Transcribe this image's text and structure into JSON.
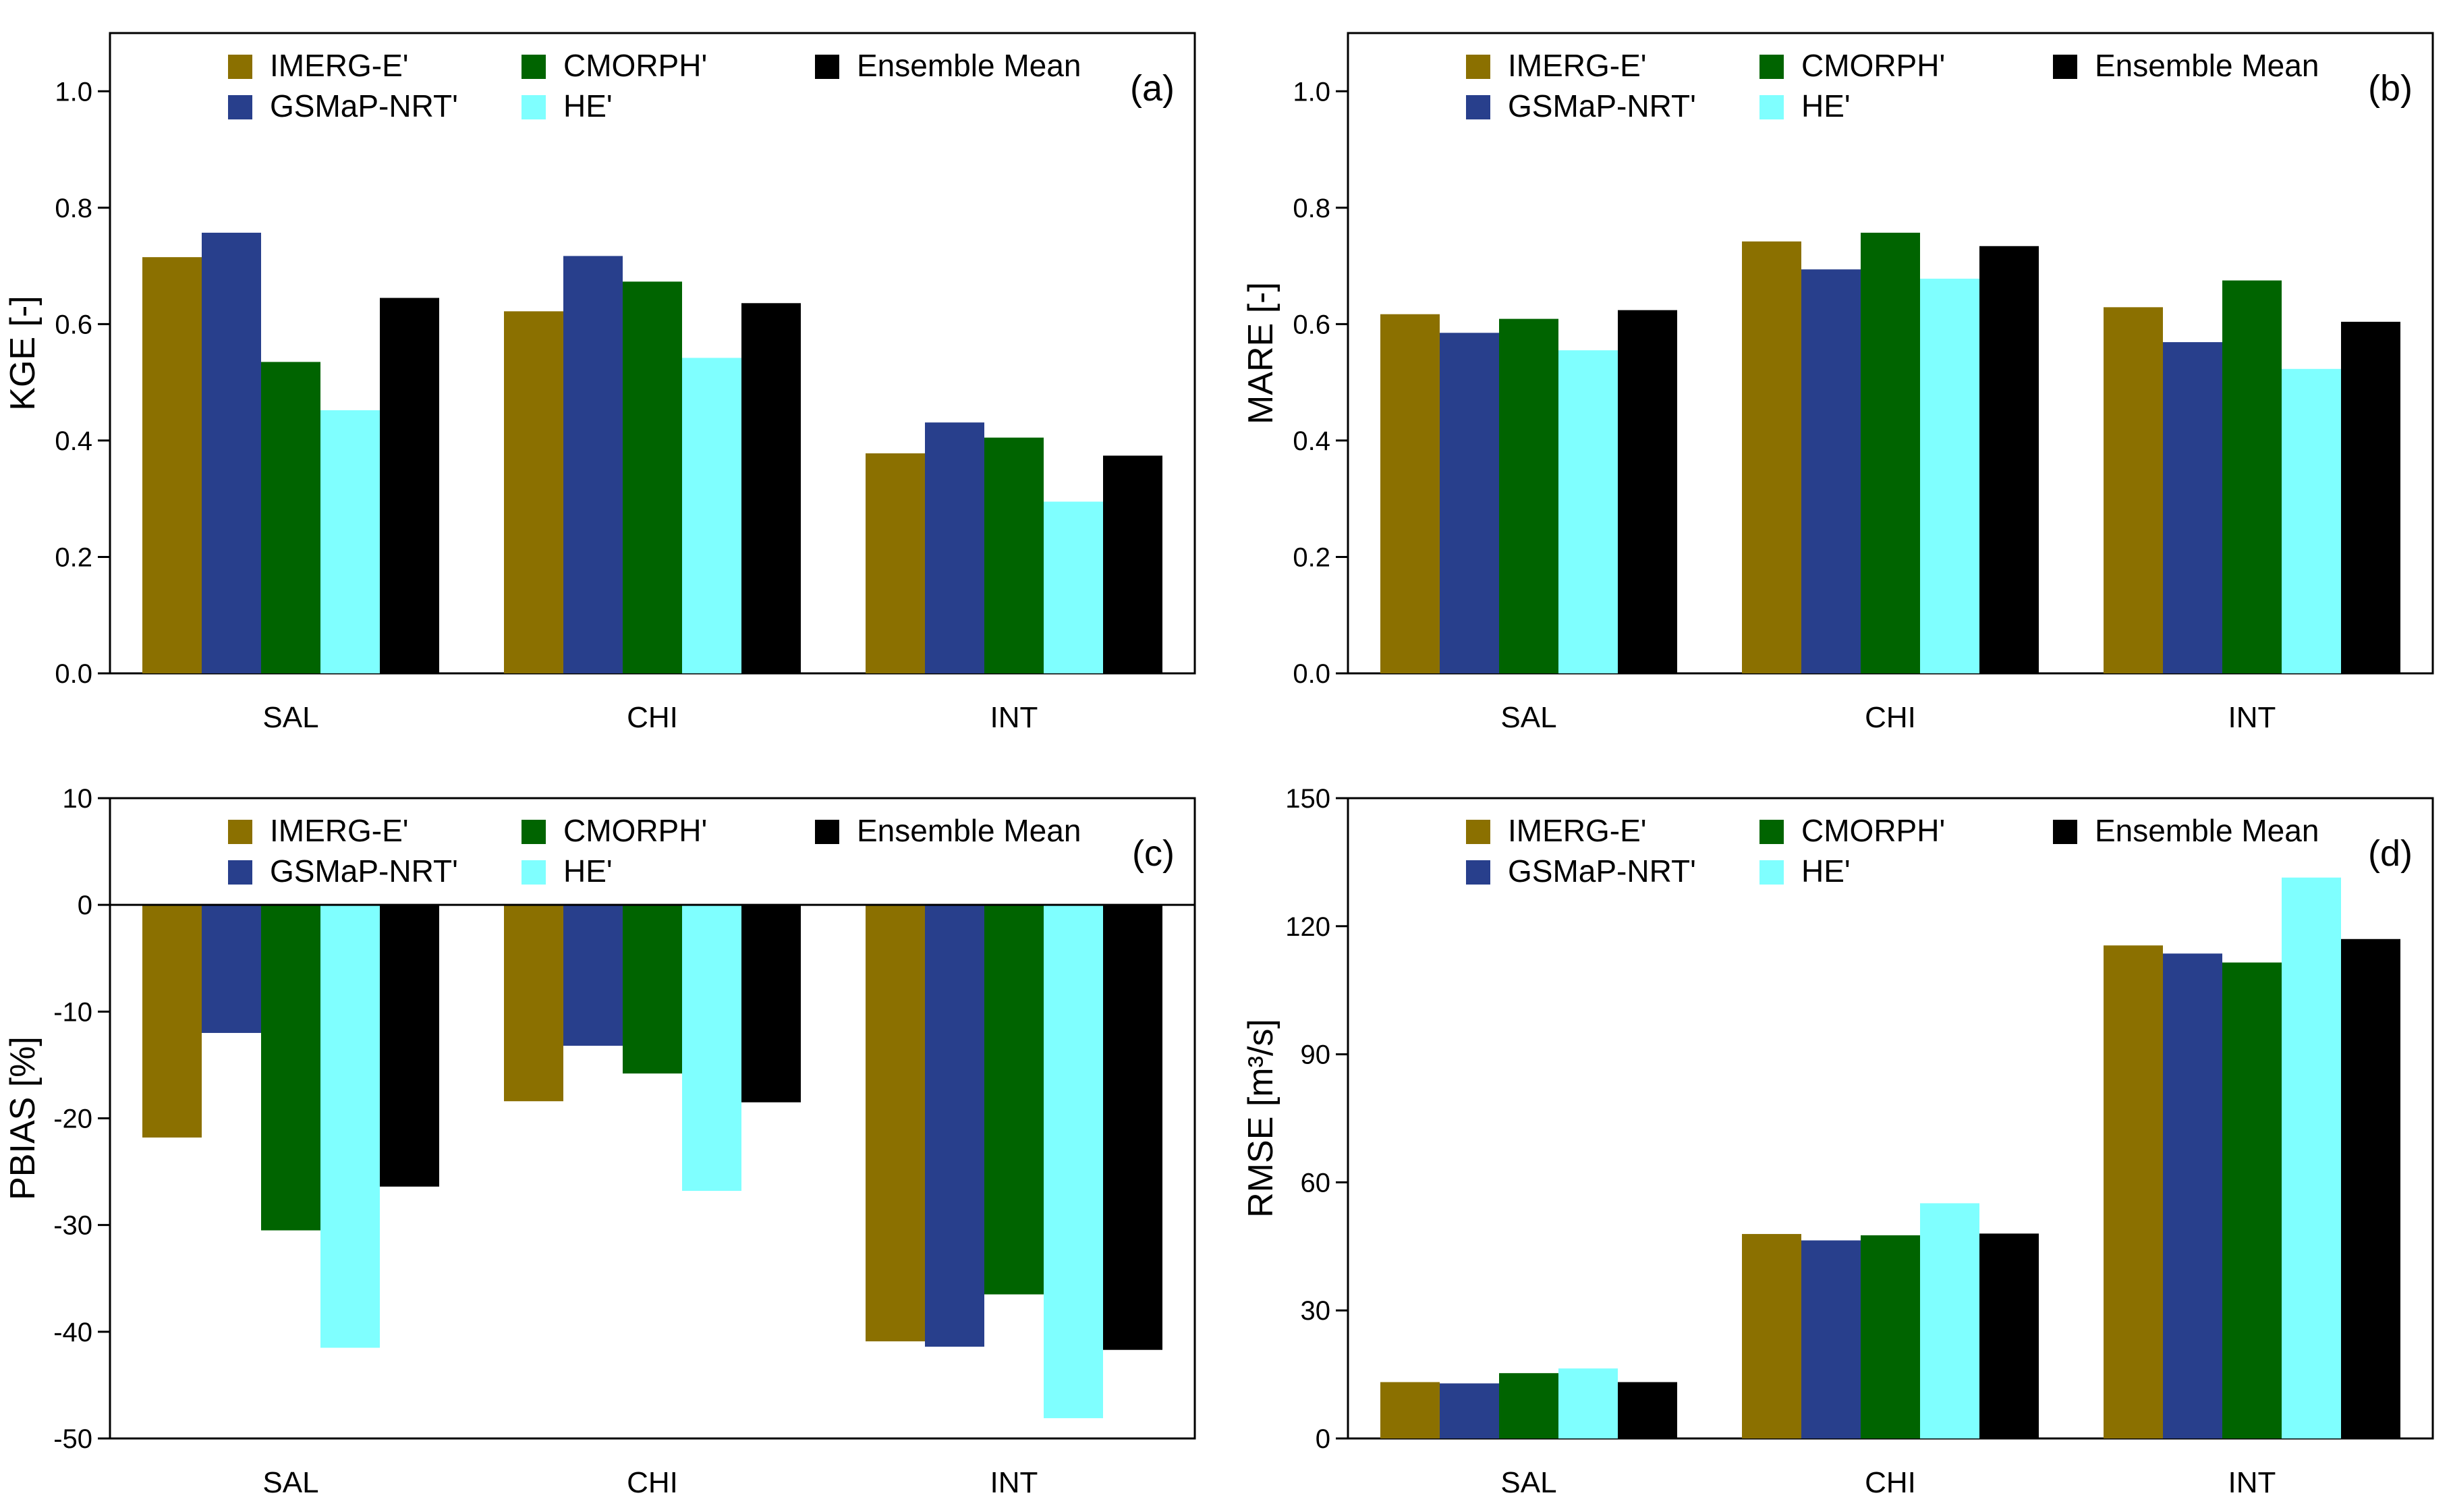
{
  "figure": {
    "series_colors": {
      "IMERG-E'": "#8B7000",
      "GSMaP-NRT'": "#283F8C",
      "CMORPH'": "#006400",
      "HE'": "#7FFFFF",
      "Ensemble Mean": "#000000"
    }
  },
  "chart_data": [
    {
      "id": "a",
      "type": "bar",
      "panel_label": "(a)",
      "title": "",
      "xlabel": "",
      "ylabel": "KGE [-]",
      "categories": [
        "SAL",
        "CHI",
        "INT"
      ],
      "ylim": [
        0,
        1.1
      ],
      "yticks": [
        0.0,
        0.2,
        0.4,
        0.6,
        0.8,
        1.0
      ],
      "ytick_labels": [
        "0.0",
        "0.2",
        "0.4",
        "0.6",
        "0.8",
        "1.0"
      ],
      "zero_line": false,
      "legend_position": "top",
      "series": [
        {
          "name": "IMERG-E'",
          "values": [
            0.715,
            0.622,
            0.378
          ]
        },
        {
          "name": "GSMaP-NRT'",
          "values": [
            0.757,
            0.717,
            0.431
          ]
        },
        {
          "name": "CMORPH'",
          "values": [
            0.535,
            0.673,
            0.405
          ]
        },
        {
          "name": "HE'",
          "values": [
            0.452,
            0.542,
            0.295
          ]
        },
        {
          "name": "Ensemble Mean",
          "values": [
            0.645,
            0.636,
            0.374
          ]
        }
      ]
    },
    {
      "id": "b",
      "type": "bar",
      "panel_label": "(b)",
      "title": "",
      "xlabel": "",
      "ylabel": "MARE [-]",
      "categories": [
        "SAL",
        "CHI",
        "INT"
      ],
      "ylim": [
        0,
        1.1
      ],
      "yticks": [
        0.0,
        0.2,
        0.4,
        0.6,
        0.8,
        1.0
      ],
      "ytick_labels": [
        "0.0",
        "0.2",
        "0.4",
        "0.6",
        "0.8",
        "1.0"
      ],
      "zero_line": false,
      "legend_position": "top",
      "series": [
        {
          "name": "IMERG-E'",
          "values": [
            0.617,
            0.742,
            0.629
          ]
        },
        {
          "name": "GSMaP-NRT'",
          "values": [
            0.585,
            0.694,
            0.569
          ]
        },
        {
          "name": "CMORPH'",
          "values": [
            0.609,
            0.757,
            0.675
          ]
        },
        {
          "name": "HE'",
          "values": [
            0.555,
            0.678,
            0.523
          ]
        },
        {
          "name": "Ensemble Mean",
          "values": [
            0.624,
            0.734,
            0.604
          ]
        }
      ]
    },
    {
      "id": "c",
      "type": "bar",
      "panel_label": "(c)",
      "title": "",
      "xlabel": "",
      "ylabel": "PBIAS [%]",
      "categories": [
        "SAL",
        "CHI",
        "INT"
      ],
      "ylim": [
        -50,
        10
      ],
      "yticks": [
        -50,
        -40,
        -30,
        -20,
        -10,
        0,
        10
      ],
      "ytick_labels": [
        "-50",
        "-40",
        "-30",
        "-20",
        "-10",
        "0",
        "10"
      ],
      "zero_line": true,
      "legend_position": "top",
      "series": [
        {
          "name": "IMERG-E'",
          "values": [
            -21.8,
            -18.4,
            -40.9
          ]
        },
        {
          "name": "GSMaP-NRT'",
          "values": [
            -12.0,
            -13.2,
            -41.4
          ]
        },
        {
          "name": "CMORPH'",
          "values": [
            -30.5,
            -15.8,
            -36.5
          ]
        },
        {
          "name": "HE'",
          "values": [
            -41.5,
            -26.8,
            -48.1
          ]
        },
        {
          "name": "Ensemble Mean",
          "values": [
            -26.4,
            -18.5,
            -41.7
          ]
        }
      ]
    },
    {
      "id": "d",
      "type": "bar",
      "panel_label": "(d)",
      "title": "",
      "xlabel": "",
      "ylabel": "RMSE  [m³/s]",
      "categories": [
        "SAL",
        "CHI",
        "INT"
      ],
      "ylim": [
        0,
        150
      ],
      "yticks": [
        0,
        30,
        60,
        90,
        120,
        150
      ],
      "ytick_labels": [
        "0",
        "30",
        "60",
        "90",
        "120",
        "150"
      ],
      "zero_line": false,
      "legend_position": "top",
      "series": [
        {
          "name": "IMERG-E'",
          "values": [
            13.2,
            47.9,
            115.5
          ]
        },
        {
          "name": "GSMaP-NRT'",
          "values": [
            12.9,
            46.4,
            113.6
          ]
        },
        {
          "name": "CMORPH'",
          "values": [
            15.3,
            47.6,
            111.5
          ]
        },
        {
          "name": "HE'",
          "values": [
            16.4,
            55.1,
            131.4
          ]
        },
        {
          "name": "Ensemble Mean",
          "values": [
            13.2,
            48.0,
            117.0
          ]
        }
      ]
    }
  ]
}
